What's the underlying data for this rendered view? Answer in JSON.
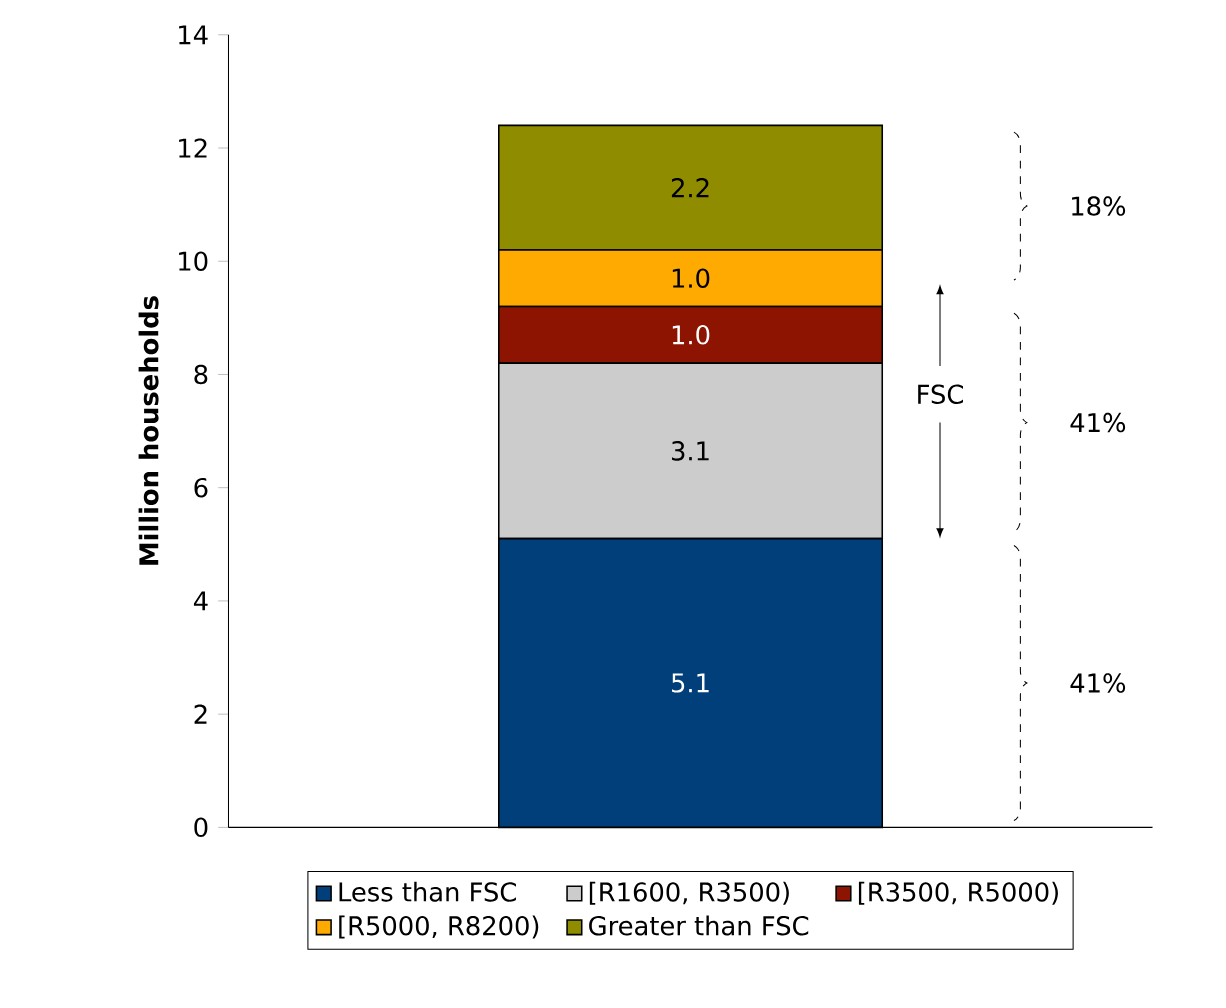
{
  "chart_data": {
    "type": "bar",
    "stacked": true,
    "ylabel": "Million households",
    "categories": [
      null
    ],
    "series": [
      {
        "name": "Less than FSC",
        "color": "#003f7a",
        "values": [
          5.1
        ],
        "value_labels": [
          "5.1"
        ]
      },
      {
        "name": "[R1600, R3500)",
        "color": "#cccccc",
        "values": [
          3.1
        ],
        "value_labels": [
          "3.1"
        ]
      },
      {
        "name": "[R3500, R5000)",
        "color": "#8c1400",
        "values": [
          1.0
        ],
        "value_labels": [
          "1.0"
        ]
      },
      {
        "name": "[R5000, R8200)",
        "color": "#ffaa00",
        "values": [
          1.0
        ],
        "value_labels": [
          "1.0"
        ]
      },
      {
        "name": "Greater than FSC",
        "color": "#8f8c00",
        "values": [
          2.2
        ],
        "value_labels": [
          "2.2"
        ]
      }
    ],
    "ylim": [
      0,
      14
    ],
    "yticks": [
      0,
      2,
      4,
      6,
      8,
      10,
      12,
      14
    ],
    "legend": "bottom",
    "annotations": [
      "41%",
      "41%",
      "18%",
      "FSC"
    ]
  }
}
